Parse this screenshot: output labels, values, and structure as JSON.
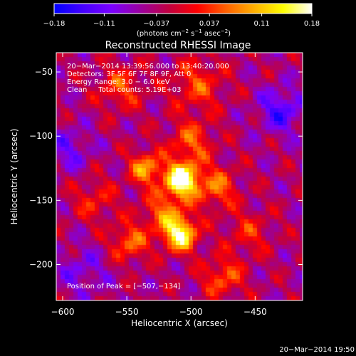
{
  "colorbar": {
    "ticks": [
      -0.18,
      -0.11,
      -0.037,
      0.037,
      0.11,
      0.18
    ],
    "tick_labels": [
      "−0.18",
      "−0.11",
      "−0.037",
      "0.037",
      "0.11",
      "0.18"
    ],
    "units_prefix": "(photons cm",
    "units_mid": " s",
    "units_mid2": " asec",
    "units_suffix": ")",
    "exp1": "−2",
    "exp2": "−1",
    "exp3": "−2",
    "colors": [
      "#0000ff",
      "#4400ff",
      "#7a00ff",
      "#9a00a0",
      "#c00040",
      "#ff0000",
      "#ff6000",
      "#ffb000",
      "#ffff00",
      "#ffffff"
    ]
  },
  "chart_data": {
    "type": "heatmap",
    "title": "Reconstructed RHESSI Image",
    "xlabel": "Heliocentric X (arcsec)",
    "ylabel": "Heliocentric Y (arcsec)",
    "xlim": [
      -605,
      -413
    ],
    "ylim": [
      -228,
      -35
    ],
    "xticks": [
      -600,
      -550,
      -500,
      -450
    ],
    "xtick_labels": [
      "−600",
      "−550",
      "−500",
      "−450"
    ],
    "yticks": [
      -50,
      -100,
      -150,
      -200
    ],
    "ytick_labels": [
      "−50",
      "−100",
      "−150",
      "−200"
    ],
    "vmin": -0.18,
    "vmax": 0.18,
    "background_value": -0.04,
    "sources": [
      {
        "x": -507,
        "y": -134,
        "amp": 0.24,
        "sigma": 9
      },
      {
        "x": -508,
        "y": -177,
        "amp": 0.19,
        "sigma": 9
      },
      {
        "x": -535,
        "y": -125,
        "amp": 0.13,
        "sigma": 9
      },
      {
        "x": -480,
        "y": -140,
        "amp": 0.1,
        "sigma": 11
      },
      {
        "x": -548,
        "y": -183,
        "amp": 0.1,
        "sigma": 10
      },
      {
        "x": -500,
        "y": -105,
        "amp": 0.09,
        "sigma": 12
      },
      {
        "x": -520,
        "y": -160,
        "amp": 0.1,
        "sigma": 12
      },
      {
        "x": -555,
        "y": -62,
        "amp": 0.08,
        "sigma": 12
      },
      {
        "x": -495,
        "y": -60,
        "amp": 0.08,
        "sigma": 14
      },
      {
        "x": -475,
        "y": -210,
        "amp": 0.09,
        "sigma": 11
      },
      {
        "x": -575,
        "y": -150,
        "amp": 0.06,
        "sigma": 12
      },
      {
        "x": -455,
        "y": -175,
        "amp": 0.06,
        "sigma": 12
      },
      {
        "x": -430,
        "y": -80,
        "amp": -0.09,
        "sigma": 12
      },
      {
        "x": -595,
        "y": -110,
        "amp": -0.06,
        "sigma": 12
      },
      {
        "x": -585,
        "y": -205,
        "amp": -0.05,
        "sigma": 14
      }
    ],
    "peak": {
      "x": -507,
      "y": -134
    }
  },
  "overlay": {
    "line1": "20−Mar−2014 13:39:56.000 to 13:40:20.000",
    "line2": "Detectors: 3F 5F 6F 7F 8F 9F, Att 0",
    "line3": "Energy Range: 3.0 − 6.0 keV",
    "line4": "Clean     Total counts: 5.19E+03",
    "peak_text": "Position of Peak = [−507,−134]"
  },
  "footer": {
    "date": "20−Mar−2014 19:50"
  }
}
